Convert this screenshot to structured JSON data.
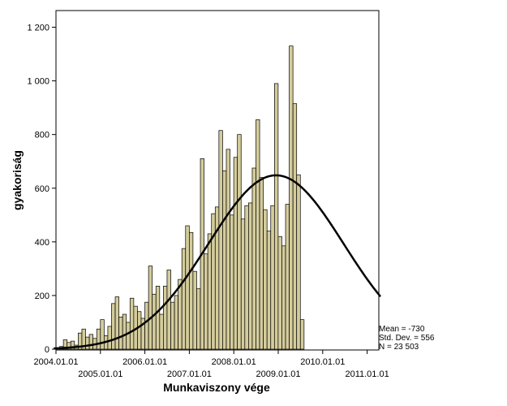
{
  "chart_data": {
    "type": "bar",
    "xlabel": "Munkaviszony vége",
    "ylabel": "gyakoriság",
    "ylim": [
      0,
      1200
    ],
    "y_ticks": [
      {
        "value": 0,
        "label": "0"
      },
      {
        "value": 200,
        "label": "200"
      },
      {
        "value": 400,
        "label": "400"
      },
      {
        "value": 600,
        "label": "600"
      },
      {
        "value": 800,
        "label": "800"
      },
      {
        "value": 1000,
        "label": "1 000"
      },
      {
        "value": 1200,
        "label": "1 200"
      }
    ],
    "x_ticks": [
      {
        "value": 0,
        "label": "2004.01.01",
        "row": 0
      },
      {
        "value": 1,
        "label": "2005.01.01",
        "row": 1
      },
      {
        "value": 2,
        "label": "2006.01.01",
        "row": 0
      },
      {
        "value": 3,
        "label": "2007.01.01",
        "row": 1
      },
      {
        "value": 4,
        "label": "2008.01.01",
        "row": 0
      },
      {
        "value": 5,
        "label": "2009.01.01",
        "row": 1
      },
      {
        "value": 6,
        "label": "2010.01.01",
        "row": 0
      },
      {
        "value": 7,
        "label": "2011.01.01",
        "row": 1
      }
    ],
    "bin_width_years": 0.0833,
    "values": [
      5,
      10,
      35,
      25,
      30,
      15,
      60,
      75,
      45,
      55,
      40,
      75,
      110,
      50,
      85,
      170,
      195,
      120,
      130,
      100,
      190,
      160,
      140,
      115,
      175,
      310,
      205,
      235,
      130,
      235,
      295,
      175,
      200,
      260,
      375,
      460,
      435,
      290,
      225,
      710,
      355,
      430,
      505,
      530,
      815,
      665,
      745,
      500,
      715,
      800,
      485,
      535,
      545,
      675,
      855,
      640,
      520,
      440,
      535,
      990,
      420,
      385,
      540,
      1130,
      915,
      650,
      110
    ],
    "bar_color": "#d4cc9c",
    "normal_curve": {
      "mean_x": 4.95,
      "sd_x": 1.52,
      "peak": 648,
      "x_start": -0.05,
      "x_end": 7.3
    },
    "stats": [
      "Mean = -730",
      "Std. Dev. = 556",
      "N = 23 503"
    ]
  }
}
